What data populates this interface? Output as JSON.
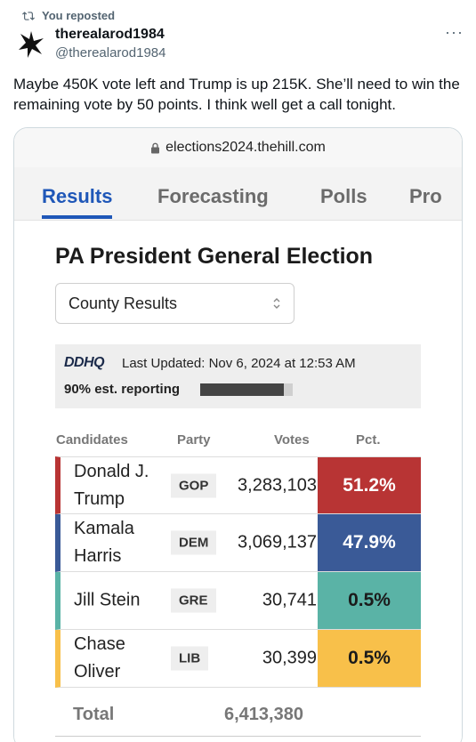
{
  "repost": {
    "label": "You reposted"
  },
  "author": {
    "display_name": "therealarod1984",
    "handle": "@therealarod1984"
  },
  "more_label": "···",
  "tweet": {
    "text": "Maybe 450K vote left and Trump is up 215K.  She’ll need to win the remaining vote by 50 points.  I think well get a call tonight."
  },
  "browser": {
    "url": "elections2024.thehill.com"
  },
  "site_nav": {
    "tabs": [
      {
        "label": "Results",
        "active": true
      },
      {
        "label": "Forecasting",
        "active": false
      },
      {
        "label": "Polls",
        "active": false
      },
      {
        "label": "Pro",
        "active": false
      }
    ]
  },
  "page": {
    "title": "PA President General Election",
    "select_value": "County Results"
  },
  "status": {
    "logo_text": "DDHQ",
    "last_updated": "Last Updated: Nov 6, 2024 at 12:53 AM",
    "reporting_label": "90% est. reporting",
    "reporting_fraction": 0.9
  },
  "table": {
    "headers": {
      "candidates": "Candidates",
      "party": "Party",
      "votes": "Votes",
      "pct": "Pct."
    },
    "rows": [
      {
        "name": "Donald J. Trump",
        "party": "GOP",
        "votes": "3,283,103",
        "pct": "51.2%",
        "color": "#b83434",
        "pct_text_color": "#ffffff"
      },
      {
        "name": "Kamala Harris",
        "party": "DEM",
        "votes": "3,069,137",
        "pct": "47.9%",
        "color": "#3a5a97",
        "pct_text_color": "#ffffff"
      },
      {
        "name": "Jill Stein",
        "party": "GRE",
        "votes": "30,741",
        "pct": "0.5%",
        "color": "#5ab3a6",
        "pct_text_color": "#1b1b1b"
      },
      {
        "name": "Chase Oliver",
        "party": "LIB",
        "votes": "30,399",
        "pct": "0.5%",
        "color": "#f8c04a",
        "pct_text_color": "#1b1b1b"
      }
    ],
    "total": {
      "label": "Total",
      "votes": "6,413,380"
    }
  }
}
